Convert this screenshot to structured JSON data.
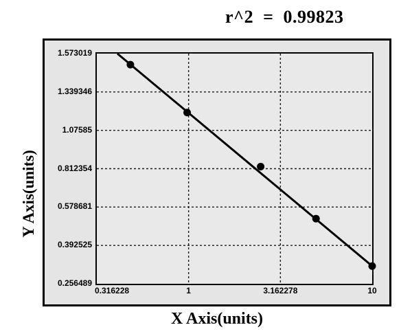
{
  "title": {
    "text": "r^2  =  0.99823"
  },
  "chart_data": {
    "type": "scatter",
    "subtype": "line+markers",
    "title": "r^2 = 0.99823",
    "xlabel": "X Axis(units)",
    "ylabel": "Y Axis(units)",
    "x_scale": "log",
    "x_range": [
      0.316228,
      10
    ],
    "grid_style": "dashed",
    "legend_position": "none",
    "r_squared": 0.99823,
    "x_ticks": [
      {
        "label": "0.316228",
        "f": 0,
        "grid": false,
        "align": "left"
      },
      {
        "label": "1",
        "f": 0.3333,
        "grid": true,
        "align": "center"
      },
      {
        "label": "3.162278",
        "f": 0.6667,
        "grid": true,
        "align": "center"
      },
      {
        "label": "10",
        "f": 1,
        "grid": false,
        "align": "center"
      }
    ],
    "y_ticks": [
      {
        "label": "1.573019",
        "f": 0,
        "grid": false
      },
      {
        "label": "1.339346",
        "f": 0.1667,
        "grid": true
      },
      {
        "label": "1.07585",
        "f": 0.3333,
        "grid": true
      },
      {
        "label": "0.812354",
        "f": 0.5,
        "grid": true
      },
      {
        "label": "0.578681",
        "f": 0.6667,
        "grid": true
      },
      {
        "label": "0.392525",
        "f": 0.8333,
        "grid": true
      },
      {
        "label": "0.256489",
        "f": 1,
        "grid": false
      }
    ],
    "points": [
      {
        "x": 0.5,
        "y": 1.51,
        "fx": 0.122,
        "fy": 0.048
      },
      {
        "x": 1,
        "y": 1.2,
        "fx": 0.328,
        "fy": 0.256
      },
      {
        "x": 2.5,
        "y": 0.83,
        "fx": 0.595,
        "fy": 0.491
      },
      {
        "x": 5,
        "y": 0.52,
        "fx": 0.796,
        "fy": 0.717
      },
      {
        "x": 10,
        "y": 0.32,
        "fx": 1.0,
        "fy": 0.923
      }
    ],
    "fit_line": {
      "x1f": 0.0746,
      "y1f": 0,
      "x2f": 1.0,
      "y2f": 0.923
    }
  },
  "colors": {
    "figure_bg": "#ffffff",
    "panel_bg": "#e5e5e5",
    "plot_bg": "#e9e9e9",
    "line": "#000000",
    "marker": "#000000",
    "grid": "#1a1a1a",
    "border": "#000000",
    "text": "#000000"
  },
  "layout_meta": {
    "marker_radius": 5.5,
    "line_width": 3,
    "grid_width": 1.4,
    "grid_dash": "3 3"
  }
}
